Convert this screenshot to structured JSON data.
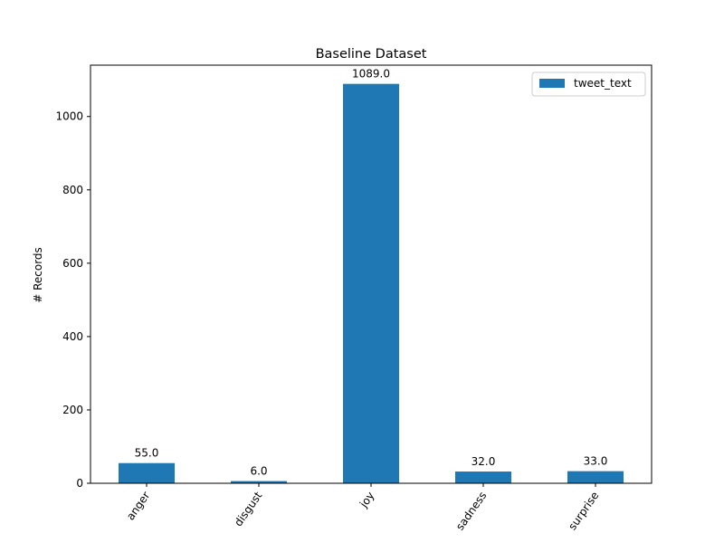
{
  "chart_data": {
    "type": "bar",
    "title": "Baseline Dataset",
    "xlabel": "",
    "ylabel": "# Records",
    "categories": [
      "anger",
      "disgust",
      "joy",
      "sadness",
      "surprise"
    ],
    "series": [
      {
        "name": "tweet_text",
        "values": [
          55.0,
          6.0,
          1089.0,
          32.0,
          33.0
        ]
      }
    ],
    "data_labels": [
      "55.0",
      "6.0",
      "1089.0",
      "32.0",
      "33.0"
    ],
    "ylim": [
      0,
      1140
    ],
    "yticks": [
      0,
      200,
      400,
      600,
      800,
      1000
    ],
    "grid": false,
    "legend_position": "top-right",
    "bar_color": "#1f77b4"
  }
}
